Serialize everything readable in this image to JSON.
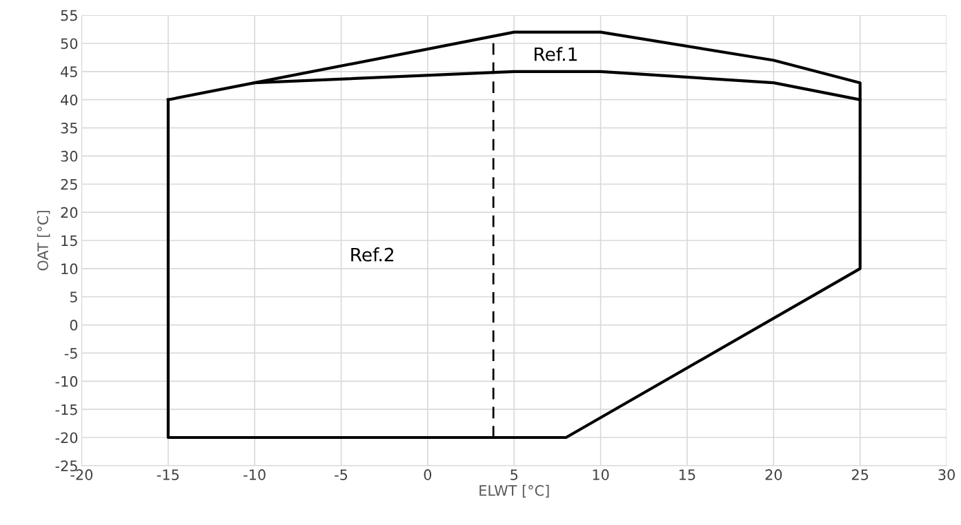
{
  "chart_data": {
    "type": "line",
    "xlabel": "ELWT [°C]",
    "ylabel": "OAT [°C]",
    "xlim": [
      -20,
      30
    ],
    "xticks": [
      -20,
      -15,
      -10,
      -5,
      0,
      5,
      10,
      15,
      20,
      25,
      30
    ],
    "ylim": [
      -25,
      55
    ],
    "yticks": [
      -25,
      -20,
      -15,
      -10,
      -5,
      0,
      5,
      10,
      15,
      20,
      25,
      30,
      35,
      40,
      45,
      50,
      55
    ],
    "grid": true,
    "marker": "none",
    "series": [
      {
        "color": "#000000",
        "line_style": "solid",
        "x": [
          -10,
          5,
          10,
          20,
          25,
          25,
          8,
          -15,
          -15
        ],
        "values": [
          43,
          52,
          52,
          47,
          43,
          10,
          -20,
          -20,
          40
        ]
      },
      {
        "color": "#000000",
        "line_style": "solid",
        "x": [
          -15,
          -10,
          5,
          10,
          20,
          25
        ],
        "values": [
          40,
          43,
          45,
          45,
          43,
          40
        ]
      },
      {
        "color": "#000000",
        "line_style": "dashed",
        "x": [
          3.8,
          3.8
        ],
        "values": [
          -20,
          51.3
        ]
      }
    ],
    "annotations": [
      "Ref.1",
      "Ref.2"
    ]
  }
}
